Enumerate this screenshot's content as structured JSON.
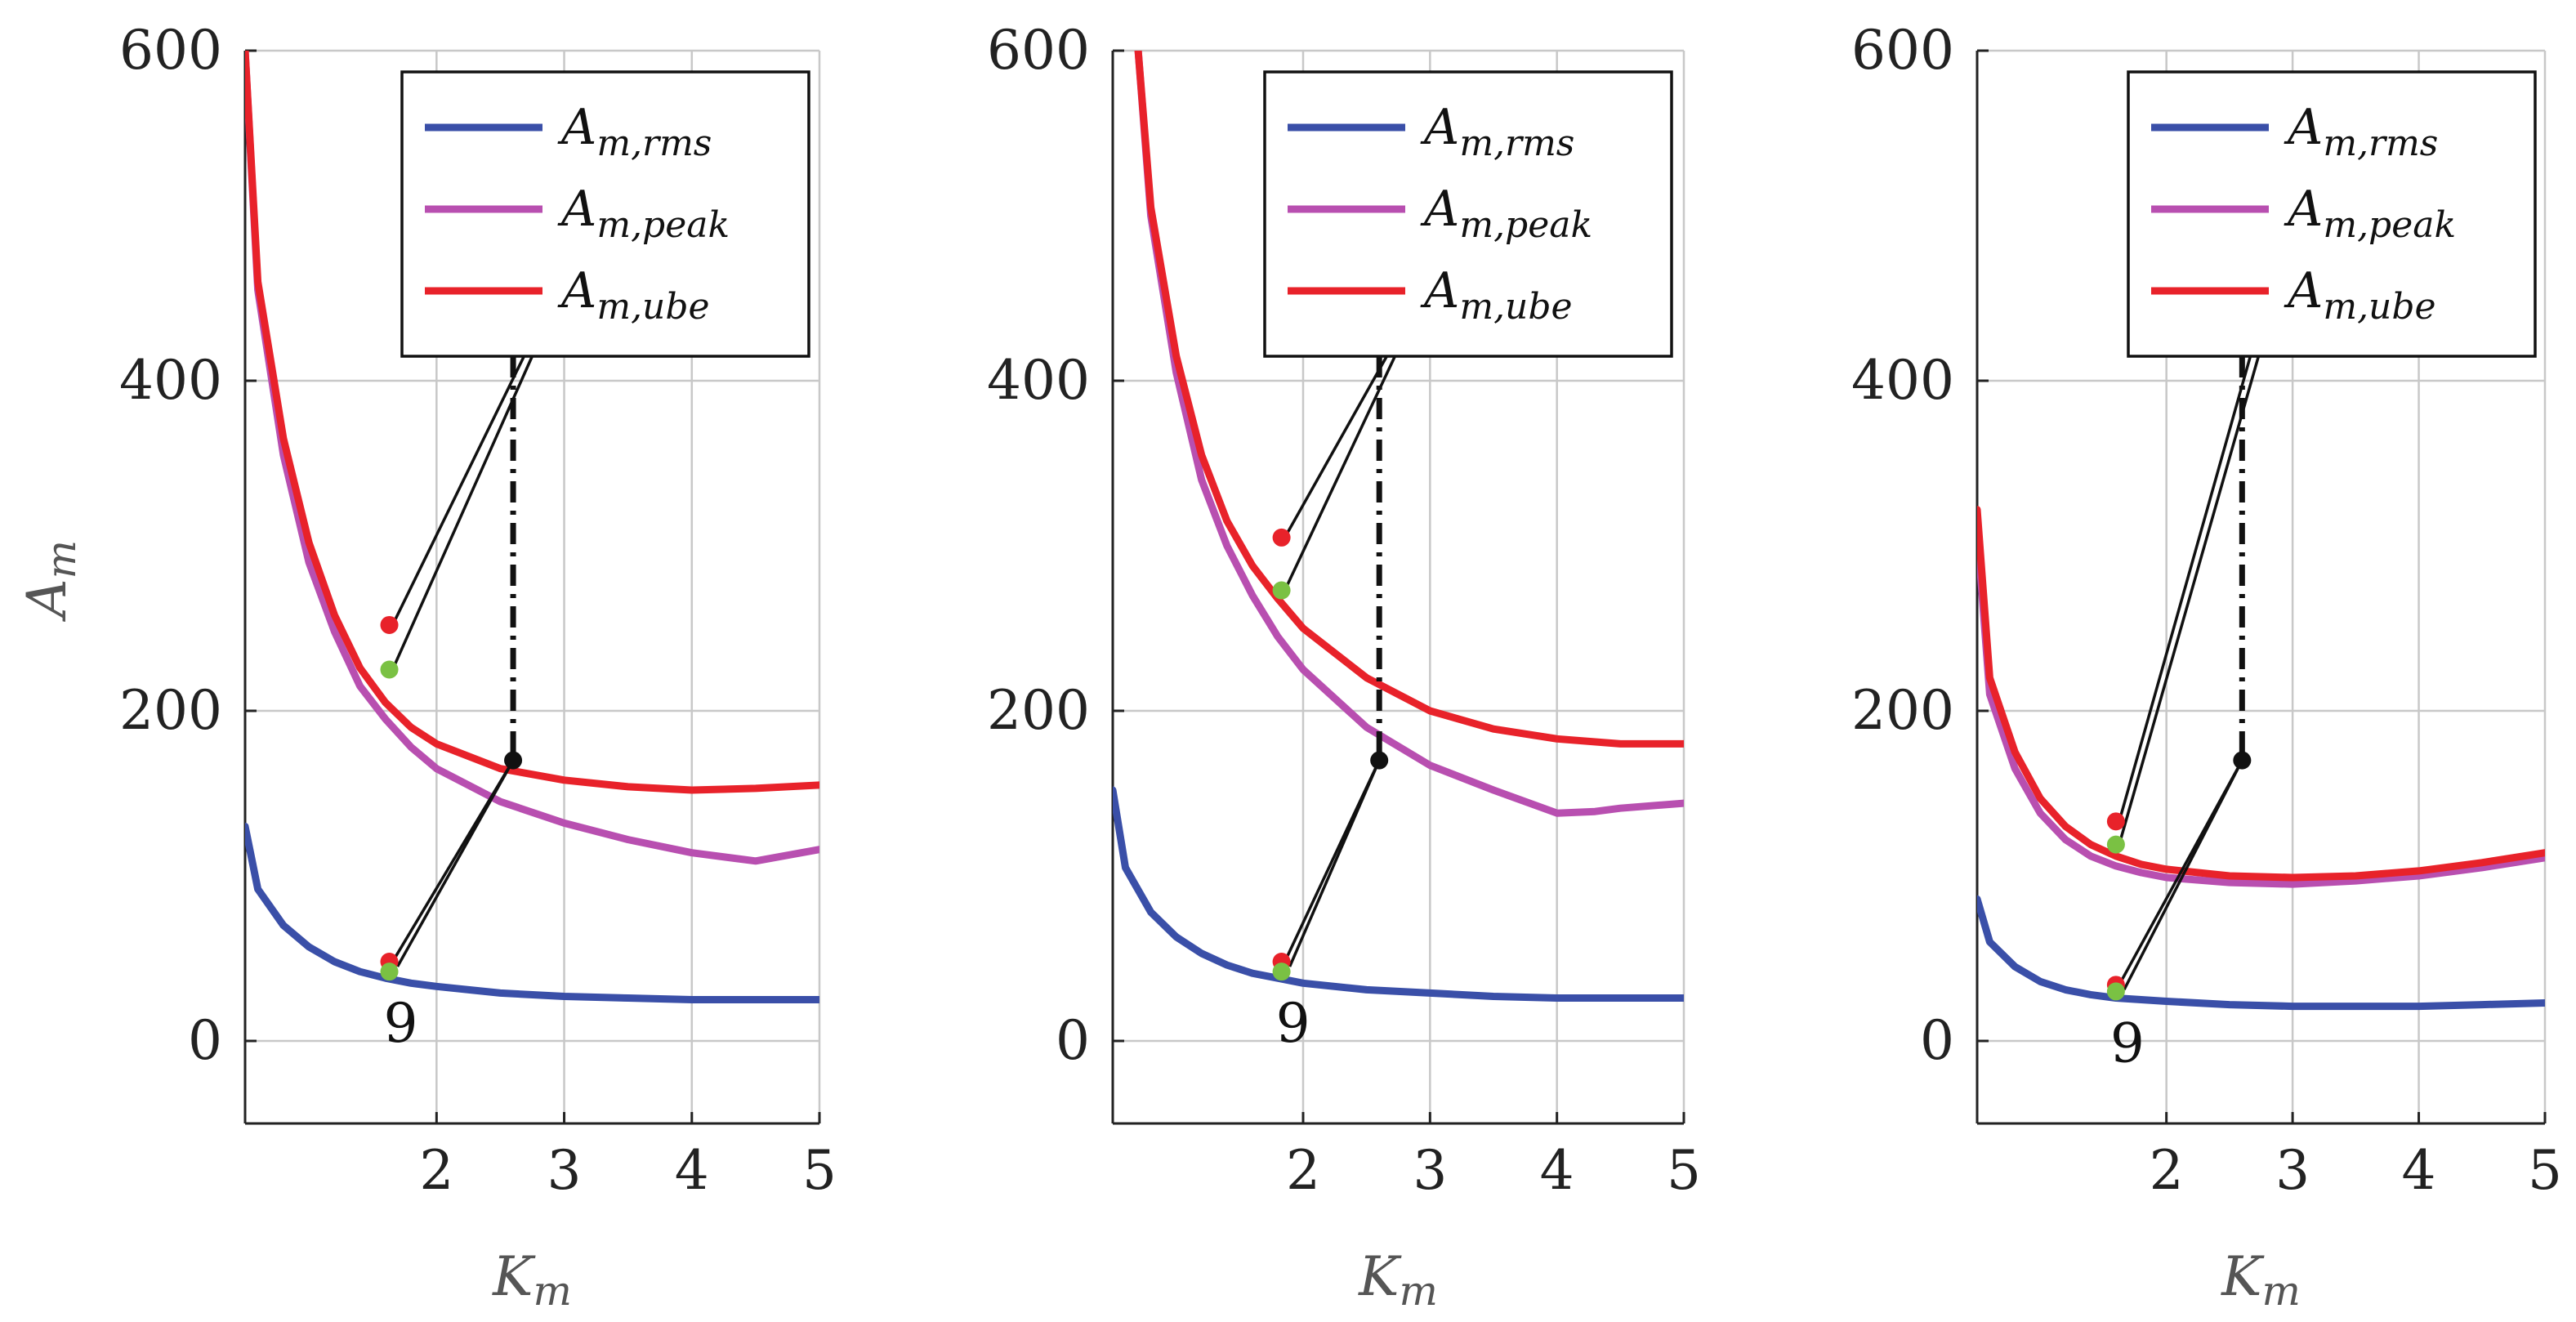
{
  "chart_data": [
    {
      "type": "line",
      "panel": "left",
      "xlabel": "K",
      "xlabel_sub": "m",
      "ylabel": "A",
      "ylabel_sub": "m",
      "xlim": [
        0.5,
        5
      ],
      "ylim": [
        -50,
        600
      ],
      "xticks": [
        2,
        3,
        4,
        5
      ],
      "yticks": [
        0,
        200,
        400,
        600
      ],
      "grid": true,
      "legend_position": "top-right",
      "series": [
        {
          "name": "A",
          "sub": "m,rms",
          "color": "#3a4fa8",
          "x": [
            0.5,
            0.6,
            0.8,
            1.0,
            1.2,
            1.4,
            1.6,
            1.8,
            2.0,
            2.5,
            3.0,
            3.5,
            4.0,
            4.5,
            5.0
          ],
          "y": [
            130,
            92,
            70,
            57,
            48,
            42,
            38,
            35,
            33,
            29,
            27,
            26,
            25,
            25,
            25
          ]
        },
        {
          "name": "A",
          "sub": "m,peak",
          "color": "#b84fb0",
          "x": [
            0.5,
            0.6,
            0.8,
            1.0,
            1.2,
            1.4,
            1.6,
            1.8,
            2.0,
            2.5,
            3.0,
            3.5,
            4.0,
            4.5,
            5.0
          ],
          "y": [
            600,
            455,
            355,
            290,
            248,
            215,
            195,
            178,
            165,
            145,
            132,
            122,
            114,
            109,
            116
          ]
        },
        {
          "name": "A",
          "sub": "m,ube",
          "color": "#e8222a",
          "x": [
            0.5,
            0.6,
            0.8,
            1.0,
            1.2,
            1.4,
            1.6,
            1.8,
            2.0,
            2.5,
            3.0,
            3.5,
            4.0,
            4.5,
            5.0
          ],
          "y": [
            600,
            460,
            365,
            302,
            258,
            226,
            205,
            190,
            180,
            165,
            158,
            154,
            152,
            153,
            155
          ]
        }
      ],
      "points": [
        {
          "x": 1.63,
          "y": 252,
          "color": "#e8222a"
        },
        {
          "x": 1.63,
          "y": 225,
          "color": "#7ac143"
        },
        {
          "x": 1.63,
          "y": 48,
          "color": "#e8222a"
        },
        {
          "x": 1.63,
          "y": 42,
          "color": "#7ac143"
        },
        {
          "x": 2.6,
          "y": 170,
          "color": "#111111"
        }
      ],
      "annotation": "9",
      "marker_x": 2.6
    },
    {
      "type": "line",
      "panel": "middle",
      "xlabel": "K",
      "xlabel_sub": "m",
      "xlim": [
        0.5,
        5
      ],
      "ylim": [
        -50,
        600
      ],
      "xticks": [
        2,
        3,
        4,
        5
      ],
      "yticks": [
        0,
        200,
        400,
        600
      ],
      "grid": true,
      "legend_position": "top-right",
      "series": [
        {
          "name": "A",
          "sub": "m,rms",
          "color": "#3a4fa8",
          "x": [
            0.5,
            0.6,
            0.8,
            1.0,
            1.2,
            1.4,
            1.6,
            1.8,
            2.0,
            2.5,
            3.0,
            3.5,
            4.0,
            4.5,
            5.0
          ],
          "y": [
            152,
            105,
            78,
            63,
            53,
            46,
            41,
            38,
            35,
            31,
            29,
            27,
            26,
            26,
            26
          ]
        },
        {
          "name": "A",
          "sub": "m,peak",
          "color": "#b84fb0",
          "x": [
            0.7,
            0.8,
            1.0,
            1.2,
            1.4,
            1.6,
            1.8,
            2.0,
            2.5,
            3.0,
            3.5,
            4.0,
            4.3,
            4.5,
            5.0
          ],
          "y": [
            600,
            500,
            405,
            340,
            300,
            270,
            245,
            225,
            190,
            167,
            152,
            138,
            139,
            141,
            144
          ]
        },
        {
          "name": "A",
          "sub": "m,ube",
          "color": "#e8222a",
          "x": [
            0.7,
            0.8,
            1.0,
            1.2,
            1.4,
            1.6,
            1.8,
            2.0,
            2.5,
            3.0,
            3.5,
            4.0,
            4.5,
            5.0
          ],
          "y": [
            600,
            505,
            415,
            355,
            315,
            288,
            268,
            250,
            220,
            200,
            189,
            183,
            180,
            180
          ]
        }
      ],
      "points": [
        {
          "x": 1.83,
          "y": 305,
          "color": "#e8222a"
        },
        {
          "x": 1.83,
          "y": 273,
          "color": "#7ac143"
        },
        {
          "x": 1.83,
          "y": 48,
          "color": "#e8222a"
        },
        {
          "x": 1.83,
          "y": 42,
          "color": "#7ac143"
        },
        {
          "x": 2.6,
          "y": 170,
          "color": "#111111"
        }
      ],
      "annotation": "9",
      "marker_x": 2.6
    },
    {
      "type": "line",
      "panel": "right",
      "xlabel": "K",
      "xlabel_sub": "m",
      "xlim": [
        0.5,
        5
      ],
      "ylim": [
        -50,
        600
      ],
      "xticks": [
        2,
        3,
        4,
        5
      ],
      "yticks": [
        0,
        200,
        400,
        600
      ],
      "grid": true,
      "legend_position": "top-right",
      "series": [
        {
          "name": "A",
          "sub": "m,rms",
          "color": "#3a4fa8",
          "x": [
            0.5,
            0.6,
            0.8,
            1.0,
            1.2,
            1.4,
            1.6,
            1.8,
            2.0,
            2.5,
            3.0,
            3.5,
            4.0,
            4.5,
            5.0
          ],
          "y": [
            86,
            60,
            45,
            36,
            31,
            28,
            26,
            25,
            24,
            22,
            21,
            21,
            21,
            22,
            23
          ]
        },
        {
          "name": "A",
          "sub": "m,peak",
          "color": "#b84fb0",
          "x": [
            0.5,
            0.6,
            0.8,
            1.0,
            1.2,
            1.4,
            1.6,
            1.8,
            2.0,
            2.5,
            3.0,
            3.5,
            4.0,
            4.5,
            5.0
          ],
          "y": [
            310,
            210,
            165,
            138,
            122,
            112,
            106,
            102,
            99,
            96,
            95,
            97,
            100,
            105,
            111
          ]
        },
        {
          "name": "A",
          "sub": "m,ube",
          "color": "#e8222a",
          "x": [
            0.5,
            0.6,
            0.8,
            1.0,
            1.2,
            1.4,
            1.6,
            1.8,
            2.0,
            2.5,
            3.0,
            3.5,
            4.0,
            4.5,
            5.0
          ],
          "y": [
            322,
            220,
            175,
            147,
            130,
            119,
            112,
            107,
            104,
            100,
            99,
            100,
            103,
            108,
            114
          ]
        }
      ],
      "points": [
        {
          "x": 1.6,
          "y": 133,
          "color": "#e8222a"
        },
        {
          "x": 1.6,
          "y": 119,
          "color": "#7ac143"
        },
        {
          "x": 1.6,
          "y": 34,
          "color": "#e8222a"
        },
        {
          "x": 1.6,
          "y": 30,
          "color": "#7ac143"
        },
        {
          "x": 2.6,
          "y": 170,
          "color": "#111111"
        }
      ],
      "annotation": "9",
      "marker_x": 2.6
    }
  ]
}
